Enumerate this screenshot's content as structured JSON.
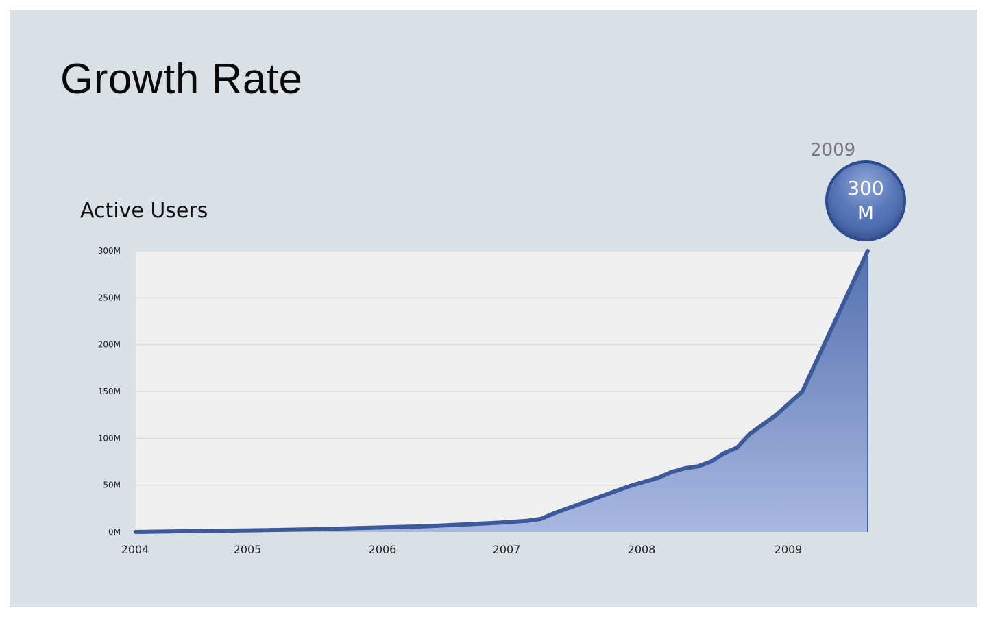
{
  "slide": {
    "title": "Growth Rate",
    "subtitle": "Active Users"
  },
  "callout": {
    "year": "2009",
    "value": "300 M"
  },
  "colors": {
    "background": "#d9e1e6",
    "plot_background": "#f0f0f0",
    "line": "#3c5a9a",
    "area_top": "#5470ad",
    "area_bottom": "#a8b8e2",
    "bubble": "#4c6aae"
  },
  "chart_data": {
    "type": "area",
    "title": "Active Users",
    "xlabel": "",
    "ylabel": "",
    "grid": true,
    "xlim": [
      2004.0,
      2009.6
    ],
    "ylim": [
      0,
      300
    ],
    "x_ticks": [
      2004,
      2005,
      2006,
      2007,
      2008,
      2009
    ],
    "x_tick_labels": [
      "2004",
      "2005",
      "2006",
      "2007",
      "2008",
      "2009"
    ],
    "y_ticks": [
      0,
      50,
      100,
      150,
      200,
      250,
      300
    ],
    "y_tick_labels": [
      "0M",
      "50M",
      "100M",
      "150M",
      "200M",
      "250M",
      "300M"
    ],
    "series": [
      {
        "x": [
          2004.0,
          2004.5,
          2005.0,
          2005.4,
          2005.9,
          2006.2,
          2006.5,
          2006.8,
          2007.0,
          2007.1,
          2007.2,
          2007.4,
          2007.6,
          2007.8,
          2008.0,
          2008.1,
          2008.2,
          2008.3,
          2008.4,
          2008.5,
          2008.6,
          2008.7,
          2008.9,
          2009.1,
          2009.6
        ],
        "values": [
          0,
          1,
          2,
          3,
          5,
          6,
          8,
          10,
          12,
          14,
          20,
          30,
          40,
          50,
          58,
          64,
          68,
          70,
          75,
          84,
          90,
          105,
          125,
          150,
          300
        ]
      }
    ]
  }
}
